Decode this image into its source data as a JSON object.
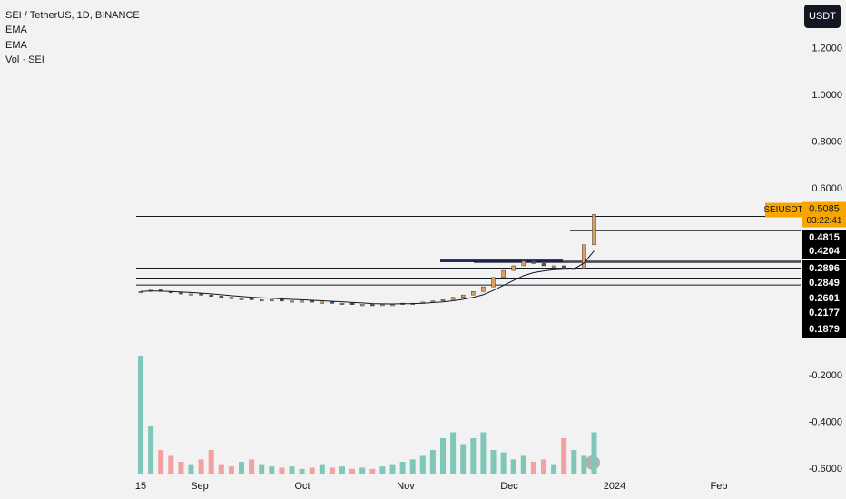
{
  "header": {
    "symbol": "SEI / TetherUS, 1D, BINANCE",
    "indicators": [
      "EMA",
      "EMA",
      "Vol · SEI"
    ]
  },
  "currency_button": "USDT",
  "price_axis": {
    "ticks": [
      {
        "value": 1.2,
        "label": "1.2000"
      },
      {
        "value": 1.0,
        "label": "1.0000"
      },
      {
        "value": 0.8,
        "label": "0.8000"
      },
      {
        "value": 0.6,
        "label": "0.6000"
      },
      {
        "value": -0.2,
        "label": "-0.2000"
      },
      {
        "value": -0.4,
        "label": "-0.4000"
      },
      {
        "value": -0.6,
        "label": "-0.6000"
      }
    ]
  },
  "last_price": {
    "symbol": "SEIUSDT",
    "value": 0.5085,
    "countdown": "03:22:41"
  },
  "levels": [
    0.4815,
    0.4204,
    0.2896,
    0.2849,
    0.2601,
    0.2177,
    0.1879
  ],
  "time_axis": [
    "15",
    "Sep",
    "Oct",
    "Nov",
    "Dec",
    "2024",
    "Feb"
  ],
  "closes": [
    0.16,
    0.17,
    0.16,
    0.155,
    0.15,
    0.15,
    0.145,
    0.14,
    0.135,
    0.13,
    0.13,
    0.125,
    0.125,
    0.125,
    0.12,
    0.12,
    0.12,
    0.115,
    0.115,
    0.11,
    0.11,
    0.105,
    0.105,
    0.1,
    0.105,
    0.105,
    0.11,
    0.11,
    0.115,
    0.12,
    0.125,
    0.135,
    0.145,
    0.16,
    0.18,
    0.22,
    0.25,
    0.27,
    0.29,
    0.28,
    0.27,
    0.27,
    0.26,
    0.26,
    0.36,
    0.49
  ],
  "volumes": [
    100,
    40,
    20,
    15,
    10,
    8,
    12,
    20,
    8,
    6,
    10,
    12,
    8,
    6,
    5,
    6,
    4,
    5,
    8,
    5,
    6,
    4,
    5,
    4,
    6,
    8,
    10,
    12,
    15,
    20,
    30,
    35,
    25,
    30,
    35,
    20,
    18,
    12,
    15,
    10,
    12,
    8,
    30,
    20,
    15,
    35
  ]
}
